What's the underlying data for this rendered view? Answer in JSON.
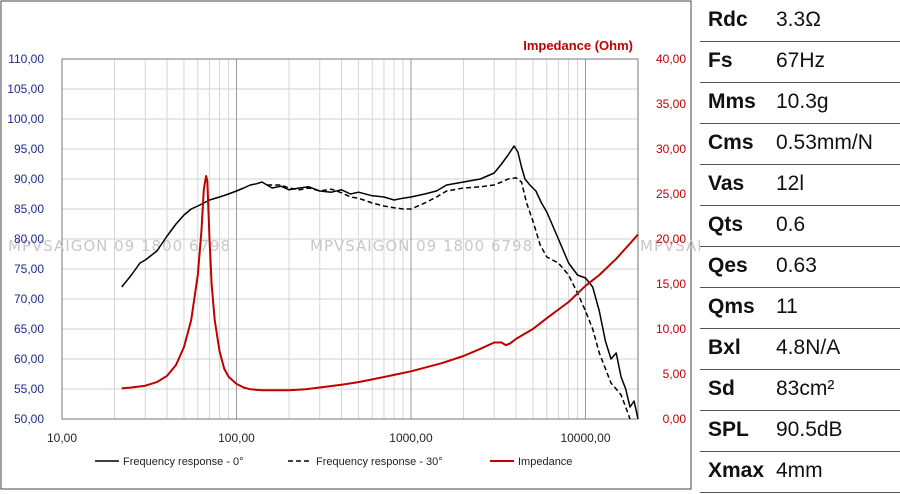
{
  "chart_data": {
    "type": "line",
    "title": "Impedance (Ohm)",
    "x_scale": "log",
    "xlim": [
      10,
      20000
    ],
    "x_ticks": [
      "10,00",
      "100,00",
      "1000,00",
      "10000,00"
    ],
    "y_left": {
      "ylim": [
        50,
        110
      ],
      "ticks": [
        "50,00",
        "55,00",
        "60,00",
        "65,00",
        "70,00",
        "75,00",
        "80,00",
        "85,00",
        "90,00",
        "95,00",
        "100,00",
        "105,00",
        "110,00"
      ]
    },
    "y_right": {
      "label": "Impedance (Ohm)",
      "ylim": [
        0,
        40
      ],
      "ticks": [
        "0,00",
        "5,00",
        "10,00",
        "15,00",
        "20,00",
        "25,00",
        "30,00",
        "35,00",
        "40,00"
      ]
    },
    "watermark": "MPVSAIGON 09 1800 6798",
    "series": [
      {
        "name": "Frequency response - 0°",
        "axis": "left",
        "style": "solid",
        "color": "#000000",
        "x": [
          22,
          25,
          28,
          30,
          35,
          40,
          45,
          50,
          55,
          60,
          65,
          70,
          80,
          90,
          100,
          110,
          120,
          130,
          140,
          160,
          180,
          200,
          230,
          260,
          300,
          350,
          400,
          450,
          500,
          600,
          700,
          800,
          900,
          1000,
          1200,
          1400,
          1600,
          2000,
          2500,
          3000,
          3300,
          3600,
          3900,
          4100,
          4300,
          4500,
          4800,
          5200,
          5600,
          6000,
          7000,
          8000,
          9000,
          10000,
          11000,
          12000,
          13000,
          14000,
          15000,
          16000,
          17000,
          18000,
          19000,
          20000
        ],
        "y": [
          72,
          74,
          76,
          76.5,
          78,
          80.5,
          82.5,
          84,
          85,
          85.5,
          86,
          86.5,
          87,
          87.5,
          88,
          88.5,
          89,
          89.2,
          89.5,
          88.5,
          88.8,
          88.2,
          88.5,
          88.7,
          88,
          87.8,
          88.2,
          87.5,
          87.8,
          87.2,
          87,
          86.5,
          86.8,
          87,
          87.5,
          88,
          89,
          89.5,
          90,
          91,
          92.5,
          94,
          95.5,
          94.5,
          92,
          90,
          89,
          88,
          86,
          84.5,
          80,
          76,
          74,
          73.5,
          72,
          68,
          63,
          60,
          61,
          57,
          55,
          52,
          53,
          50
        ]
      },
      {
        "name": "Frequency response - 30°",
        "axis": "left",
        "style": "dashed",
        "color": "#000000",
        "x": [
          150,
          180,
          200,
          230,
          260,
          300,
          350,
          400,
          450,
          500,
          600,
          700,
          800,
          900,
          1000,
          1200,
          1400,
          1600,
          2000,
          2500,
          3000,
          3300,
          3600,
          4000,
          4300,
          4600,
          5000,
          5500,
          6000,
          7000,
          8000,
          9000,
          10000,
          11000,
          12000,
          14000,
          15000,
          16000,
          17000,
          18000
        ],
        "y": [
          89,
          89,
          88.5,
          88.2,
          88.5,
          88,
          88.3,
          87.7,
          87,
          86.8,
          86,
          85.5,
          85.2,
          85,
          85,
          86,
          87,
          88,
          88.5,
          88.7,
          89,
          89.5,
          90,
          90.2,
          89.5,
          86,
          83,
          79,
          77,
          76,
          74,
          71,
          68,
          65,
          61,
          56,
          55,
          54,
          52,
          50
        ]
      },
      {
        "name": "Impedance",
        "axis": "right",
        "style": "solid",
        "color": "#c00000",
        "x": [
          22,
          25,
          30,
          35,
          40,
          45,
          50,
          55,
          60,
          63,
          65,
          67,
          68,
          70,
          72,
          75,
          80,
          85,
          90,
          100,
          110,
          120,
          140,
          160,
          200,
          250,
          300,
          400,
          500,
          600,
          800,
          1000,
          1500,
          2000,
          2500,
          3000,
          3300,
          3500,
          3700,
          4000,
          5000,
          6000,
          8000,
          10000,
          12000,
          15000,
          18000,
          20000
        ],
        "y": [
          3.4,
          3.5,
          3.7,
          4.1,
          4.8,
          6,
          8,
          11,
          16,
          21,
          25.5,
          27,
          26.5,
          20,
          15,
          11,
          7.5,
          5.6,
          4.7,
          3.9,
          3.5,
          3.3,
          3.2,
          3.2,
          3.2,
          3.3,
          3.5,
          3.8,
          4.1,
          4.4,
          4.9,
          5.3,
          6.2,
          7,
          7.8,
          8.5,
          8.5,
          8.2,
          8.4,
          8.9,
          10,
          11.2,
          13,
          14.8,
          16,
          17.8,
          19.5,
          20.5
        ]
      }
    ],
    "legend": [
      "Frequency response - 0°",
      "Frequency response - 30°",
      "Impedance"
    ]
  },
  "specs": [
    {
      "name": "Rdc",
      "value": "3.3Ω"
    },
    {
      "name": "Fs",
      "value": "67Hz"
    },
    {
      "name": "Mms",
      "value": "10.3g"
    },
    {
      "name": "Cms",
      "value": "0.53mm/N"
    },
    {
      "name": "Vas",
      "value": "12l"
    },
    {
      "name": "Qts",
      "value": "0.6"
    },
    {
      "name": "Qes",
      "value": "0.63"
    },
    {
      "name": "Qms",
      "value": "11"
    },
    {
      "name": "Bxl",
      "value": "4.8N/A"
    },
    {
      "name": "Sd",
      "value": "83cm²"
    },
    {
      "name": "SPL",
      "value": "90.5dB"
    },
    {
      "name": "Xmax",
      "value": "4mm"
    }
  ]
}
